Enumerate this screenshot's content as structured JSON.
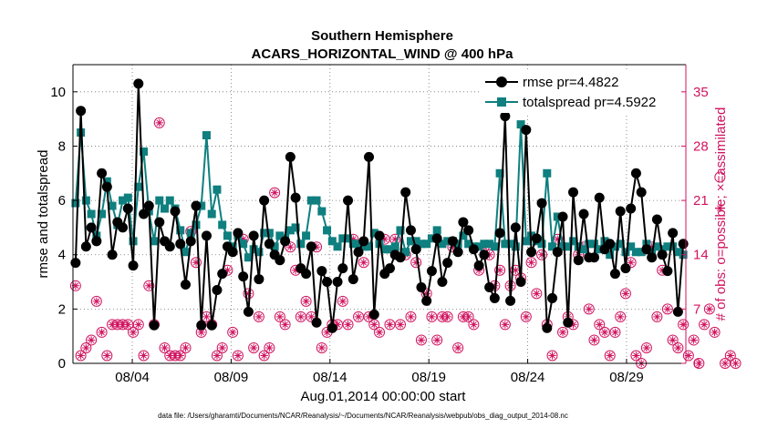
{
  "chart_data": {
    "type": "line",
    "title": "Southern Hemisphere",
    "subtitle": "ACARS_HORIZONTAL_WIND @ 400 hPa",
    "xlabel": "Aug.01,2014 00:00:00 start",
    "ylabel": "rmse and totalspread",
    "ylabel_right": "# of obs: o=possible; ×=assimilated",
    "footnote": "data file: /Users/gharamti/Documents/NCAR/Reanalysis/~/Documents/NCAR/Reanalysis/webpub/obs_diag_output_2014-08.nc",
    "xlim": [
      1,
      32
    ],
    "ylim": [
      0,
      11
    ],
    "ylim_right": [
      0,
      38.5
    ],
    "x_ticks": [
      4,
      9,
      14,
      19,
      24,
      29
    ],
    "x_tick_labels": [
      "08/04",
      "08/09",
      "08/14",
      "08/19",
      "08/24",
      "08/29"
    ],
    "y_ticks": [
      0,
      2,
      4,
      6,
      8,
      10
    ],
    "y_tick_labels": [
      "0",
      "2",
      "4",
      "6",
      "8",
      "10"
    ],
    "y_ticks_right": [
      0,
      7,
      14,
      21,
      28,
      35
    ],
    "y_tick_labels_right": [
      "0",
      "7",
      "14",
      "21",
      "28",
      "35"
    ],
    "legend_position": "top-right",
    "colors": {
      "rmse": "#000000",
      "totalspread": "#0f7f7f",
      "obs": "#d0135f"
    },
    "series": [
      {
        "name": "rmse",
        "legend": "rmse pr=4.4822",
        "values": [
          3.7,
          9.3,
          4.3,
          5.0,
          4.5,
          7.0,
          6.5,
          4.0,
          5.2,
          5.0,
          5.7,
          3.6,
          10.3,
          5.5,
          5.8,
          1.4,
          5.2,
          4.5,
          4.3,
          5.6,
          4.4,
          2.9,
          4.5,
          5.8,
          1.4,
          4.7,
          1.4,
          2.7,
          3.3,
          4.3,
          4.1,
          4.8,
          3.2,
          1.9,
          4.7,
          3.1,
          6.0,
          4.4,
          4.0,
          3.8,
          4.5,
          7.6,
          6.1,
          3.5,
          3.3,
          4.3,
          1.5,
          3.4,
          3.0,
          1.3,
          3.0,
          3.5,
          6.0,
          3.1,
          4.1,
          4.5,
          7.6,
          1.8,
          4.7,
          3.3,
          3.5,
          4.0,
          3.9,
          6.3,
          4.9,
          4.2,
          2.8,
          2.3,
          3.4,
          4.6,
          3.0,
          3.7,
          4.5,
          4.1,
          5.2,
          4.9,
          4.2,
          3.6,
          4.0,
          2.8,
          2.4,
          4.8,
          9.1,
          2.3,
          5.0,
          3.0,
          8.6,
          4.1,
          4.6,
          5.9,
          1.3,
          2.4,
          4.1,
          5.4,
          1.5,
          6.3,
          3.8,
          5.5,
          3.9,
          3.9,
          6.1,
          4.2,
          4.4,
          3.3,
          5.6,
          3.5,
          5.7,
          7.0,
          6.3,
          4.2,
          3.9,
          5.3,
          4.0,
          3.4,
          4.8,
          1.9,
          4.4
        ]
      },
      {
        "name": "totalspread",
        "legend": "totalspread pr=4.5922",
        "values": [
          5.9,
          8.5,
          6.0,
          5.5,
          4.7,
          5.5,
          6.7,
          5.8,
          5.1,
          6.0,
          6.1,
          4.5,
          6.5,
          7.8,
          5.6,
          4.5,
          6.0,
          5.7,
          6.0,
          5.7,
          4.9,
          4.1,
          4.8,
          5.1,
          5.8,
          8.4,
          5.5,
          6.4,
          5.1,
          4.7,
          4.3,
          4.7,
          4.4,
          3.9,
          4.2,
          4.1,
          4.8,
          4.8,
          4.3,
          4.7,
          4.6,
          4.9,
          5.0,
          4.4,
          4.7,
          6.0,
          6.0,
          5.6,
          4.9,
          4.5,
          4.3,
          4.6,
          4.6,
          4.4,
          4.4,
          4.3,
          4.3,
          4.8,
          4.4,
          4.2,
          4.2,
          4.3,
          4.9,
          4.1,
          4.5,
          4.5,
          4.4,
          4.4,
          4.6,
          4.9,
          4.4,
          4.5,
          4.5,
          4.4,
          4.7,
          4.4,
          4.3,
          4.3,
          4.4,
          4.4,
          4.3,
          7.0,
          4.4,
          4.4,
          4.3,
          8.8,
          4.5,
          4.7,
          4.5,
          4.4,
          7.0,
          4.3,
          5.4,
          4.3,
          4.3,
          4.5,
          4.3,
          4.2,
          4.4,
          4.4,
          4.2,
          4.5,
          4.0,
          4.3,
          4.4,
          4.1,
          4.3,
          4.1,
          4.1,
          4.4,
          4.1,
          4.3,
          4.2,
          4.3,
          4.3,
          4.1,
          4.0
        ]
      },
      {
        "name": "obs_possible",
        "axis": "right",
        "marker": "o",
        "values": [
          10,
          1,
          2,
          3,
          8,
          4,
          1,
          5,
          5,
          5,
          5,
          4,
          5,
          1,
          10,
          5,
          31,
          2,
          1,
          1,
          1,
          2,
          17,
          13,
          4,
          6,
          5,
          1,
          2,
          12,
          4,
          1,
          16,
          9,
          2,
          6,
          1,
          2,
          22,
          6,
          5,
          15,
          12,
          6,
          8,
          6,
          15,
          2,
          4,
          5,
          5,
          8,
          5,
          16,
          6,
          13,
          6,
          5,
          4,
          16,
          5,
          16,
          5,
          14,
          6,
          13,
          3,
          9,
          6,
          3,
          6,
          6,
          15,
          2,
          6,
          6,
          5,
          12,
          15,
          14,
          10,
          12,
          5,
          10,
          12,
          11,
          6,
          13,
          9,
          14,
          5,
          1,
          16,
          4,
          6,
          5,
          14,
          15,
          7,
          3,
          5,
          4,
          1,
          4,
          6,
          9,
          13,
          1,
          0,
          2,
          15,
          6,
          12,
          7,
          3,
          2,
          5,
          1,
          3,
          0,
          5,
          7,
          4,
          24,
          0,
          1,
          0
        ]
      },
      {
        "name": "obs_assimilated",
        "axis": "right",
        "marker": "*",
        "values": [
          10,
          1,
          2,
          3,
          8,
          4,
          1,
          5,
          5,
          5,
          5,
          4,
          5,
          1,
          10,
          5,
          31,
          2,
          1,
          1,
          1,
          2,
          17,
          13,
          4,
          6,
          5,
          1,
          2,
          12,
          4,
          1,
          16,
          9,
          2,
          6,
          1,
          2,
          22,
          6,
          5,
          15,
          12,
          6,
          8,
          6,
          15,
          2,
          4,
          5,
          5,
          8,
          5,
          16,
          6,
          13,
          6,
          5,
          4,
          16,
          5,
          16,
          5,
          14,
          6,
          13,
          3,
          9,
          6,
          3,
          6,
          6,
          15,
          2,
          6,
          6,
          5,
          12,
          15,
          14,
          10,
          12,
          5,
          10,
          12,
          11,
          6,
          13,
          9,
          14,
          5,
          1,
          16,
          4,
          6,
          5,
          14,
          15,
          7,
          3,
          5,
          4,
          1,
          4,
          6,
          9,
          13,
          1,
          0,
          2,
          15,
          6,
          12,
          7,
          3,
          2,
          5,
          1,
          3,
          0,
          5,
          7,
          4,
          20,
          0,
          1,
          0
        ]
      }
    ]
  }
}
